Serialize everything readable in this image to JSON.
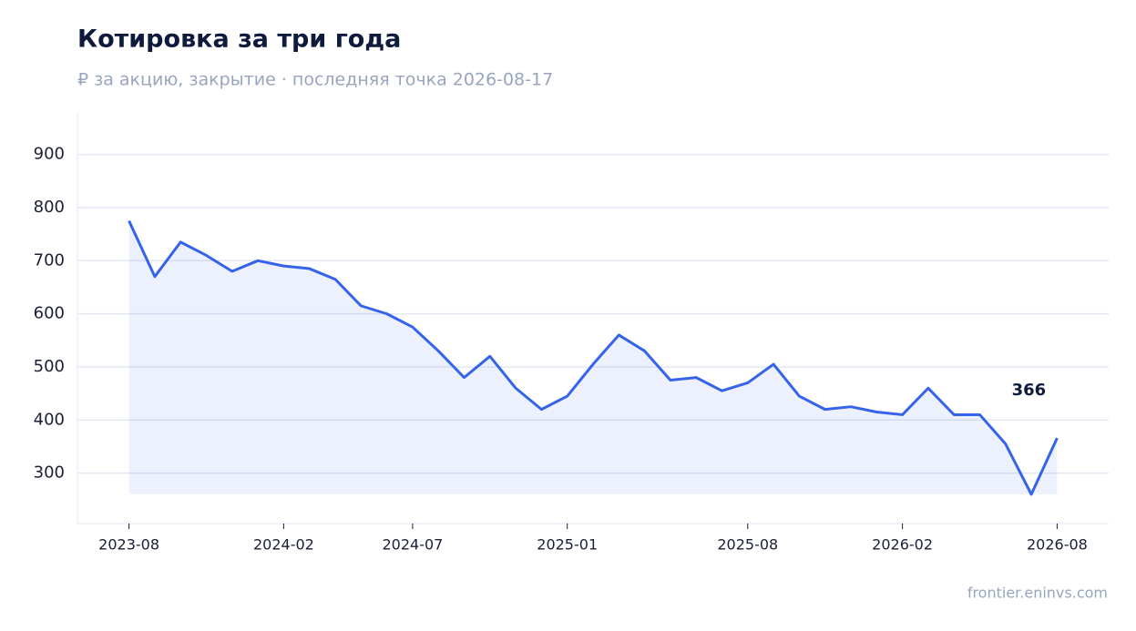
{
  "chart_data": {
    "type": "line",
    "title": "Котировка за три года",
    "subtitle": "₽ за акцию, закрытие · последняя точка 2026-08-17",
    "source": "frontier.eninvs.com",
    "x": [
      "2023-08",
      "2023-09",
      "2023-10",
      "2023-11",
      "2023-12",
      "2024-01",
      "2024-02",
      "2024-03",
      "2024-04",
      "2024-05",
      "2024-06",
      "2024-07",
      "2024-08",
      "2024-09",
      "2024-10",
      "2024-11",
      "2024-12",
      "2025-01",
      "2025-02",
      "2025-03",
      "2025-04",
      "2025-05",
      "2025-06",
      "2025-07",
      "2025-08",
      "2025-09",
      "2025-10",
      "2025-11",
      "2025-12",
      "2026-01",
      "2026-02",
      "2026-03",
      "2026-04",
      "2026-05",
      "2026-06",
      "2026-07",
      "2026-08"
    ],
    "series": [
      {
        "name": "Котировка",
        "color": "#3563e9",
        "values": [
          775,
          670,
          735,
          710,
          680,
          700,
          690,
          685,
          665,
          615,
          600,
          575,
          530,
          480,
          520,
          460,
          420,
          445,
          505,
          560,
          530,
          475,
          480,
          455,
          470,
          505,
          445,
          420,
          425,
          415,
          410,
          460,
          410,
          410,
          355,
          260,
          366
        ]
      }
    ],
    "last_label": 366,
    "xlim": [
      "2023-06",
      "2026-10"
    ],
    "xticks": [
      "2023-08",
      "2024-02",
      "2024-07",
      "2025-01",
      "2025-08",
      "2026-02",
      "2026-08"
    ],
    "ylim": [
      205,
      980
    ],
    "yticks": [
      300,
      400,
      500,
      600,
      700,
      800,
      900
    ],
    "grid": true
  }
}
